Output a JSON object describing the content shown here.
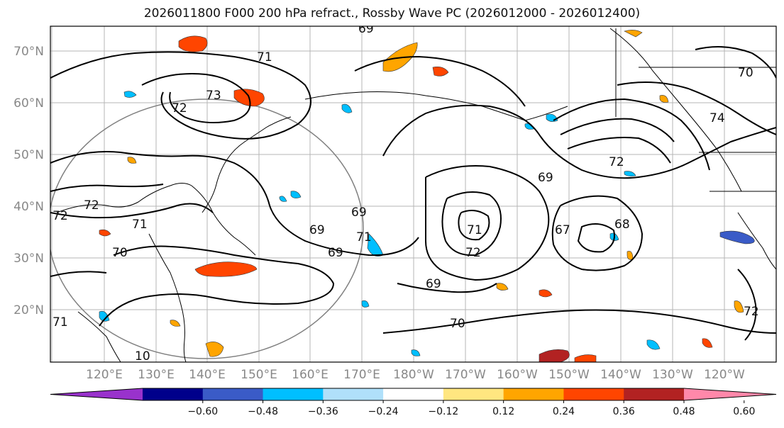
{
  "title": "2026011800 F000 200 hPa refract., Rossby Wave PC (2026012000 - 2026012400)",
  "map": {
    "lat_labels": [
      "70°N",
      "60°N",
      "50°N",
      "40°N",
      "30°N",
      "20°N"
    ],
    "lon_labels": [
      "120°E",
      "130°E",
      "140°E",
      "150°E",
      "160°E",
      "170°E",
      "180°W",
      "170°W",
      "160°W",
      "150°W",
      "140°W",
      "130°W",
      "120°W"
    ],
    "contour_labels": [
      "69",
      "71",
      "73",
      "72",
      "72",
      "71",
      "70",
      "71",
      "69",
      "69",
      "69",
      "71",
      "72",
      "69",
      "70",
      "67",
      "68",
      "72",
      "69",
      "72",
      "74",
      "70",
      "71",
      "72",
      "10"
    ]
  },
  "colorbar": {
    "ticks": [
      "−0.60",
      "−0.48",
      "−0.36",
      "−0.24",
      "−0.12",
      "0.12",
      "0.24",
      "0.36",
      "0.48",
      "0.60"
    ],
    "colors": [
      "#9932cc",
      "#00008b",
      "#3a5bc7",
      "#00bfff",
      "#b0e0fa",
      "#ffffff",
      "#ffe680",
      "#ffa500",
      "#ff4500",
      "#b22222",
      "#ff88aa"
    ]
  }
}
